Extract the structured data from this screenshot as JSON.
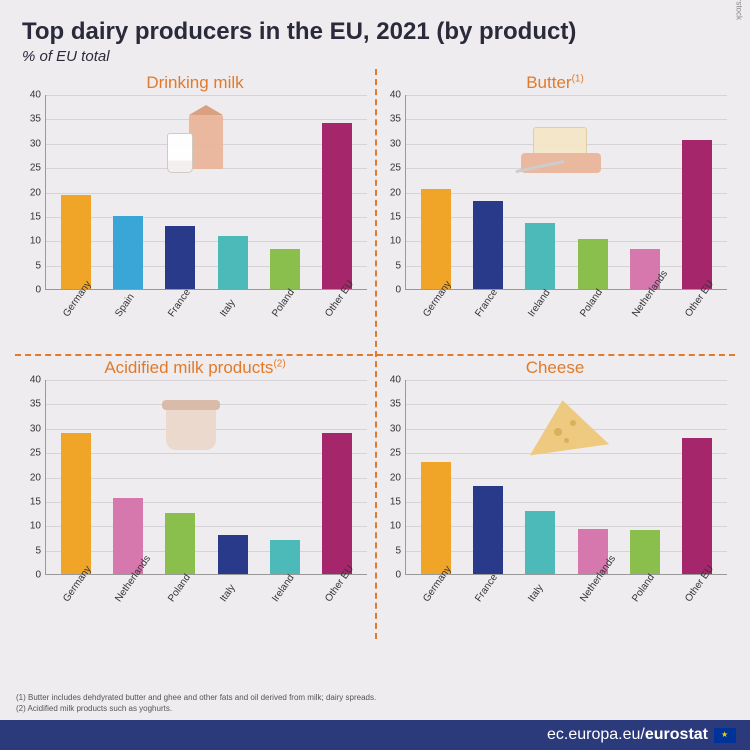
{
  "title": "Top dairy producers in the EU, 2021 (by product)",
  "subtitle": "% of EU total",
  "credit": "© Shutterstock",
  "palette": {
    "orange": "#f0a428",
    "lightblue": "#3aa6d8",
    "darkblue": "#2a3a8a",
    "teal": "#4bbab8",
    "green": "#8abf4e",
    "magenta": "#a5266b",
    "pink": "#d678ae",
    "accent": "#e27a2a",
    "bg": "#eeecef",
    "grid": "#d5d2d8",
    "footer_bg": "#2b3a7a"
  },
  "axis": {
    "ymin": 0,
    "ymax": 40,
    "ystep": 5
  },
  "panels": [
    {
      "title": "Drinking milk",
      "sup": "",
      "cats": [
        "Germany",
        "Spain",
        "France",
        "Italy",
        "Poland",
        "Other EU"
      ],
      "vals": [
        19.2,
        15.0,
        13.0,
        10.8,
        8.2,
        34.0
      ],
      "colors": [
        "orange",
        "lightblue",
        "darkblue",
        "teal",
        "green",
        "magenta"
      ],
      "illus": "milk"
    },
    {
      "title": "Butter",
      "sup": "(1)",
      "cats": [
        "Germany",
        "France",
        "Ireland",
        "Poland",
        "Netherlands",
        "Other EU"
      ],
      "vals": [
        20.5,
        18.0,
        13.5,
        10.2,
        8.3,
        30.5
      ],
      "colors": [
        "orange",
        "darkblue",
        "teal",
        "green",
        "pink",
        "magenta"
      ],
      "illus": "butter"
    },
    {
      "title": "Acidified milk products",
      "sup": "(2)",
      "cats": [
        "Germany",
        "Netherlands",
        "Poland",
        "Italy",
        "Ireland",
        "Other EU"
      ],
      "vals": [
        29.0,
        15.5,
        12.5,
        8.0,
        7.0,
        29.0
      ],
      "colors": [
        "orange",
        "pink",
        "green",
        "darkblue",
        "teal",
        "magenta"
      ],
      "illus": "yogurt"
    },
    {
      "title": "Cheese",
      "sup": "",
      "cats": [
        "Germany",
        "France",
        "Italy",
        "Netherlands",
        "Poland",
        "Other EU"
      ],
      "vals": [
        23.0,
        18.0,
        13.0,
        9.2,
        9.0,
        28.0
      ],
      "colors": [
        "orange",
        "darkblue",
        "teal",
        "pink",
        "green",
        "magenta"
      ],
      "illus": "cheese"
    }
  ],
  "footnotes": [
    "(1) Butter includes dehdyrated butter and ghee and other fats and oil derived from milk; dairy spreads.",
    "(2) Acidified milk products such as yoghurts."
  ],
  "footer_url_a": "ec.europa.eu/",
  "footer_url_b": "eurostat"
}
